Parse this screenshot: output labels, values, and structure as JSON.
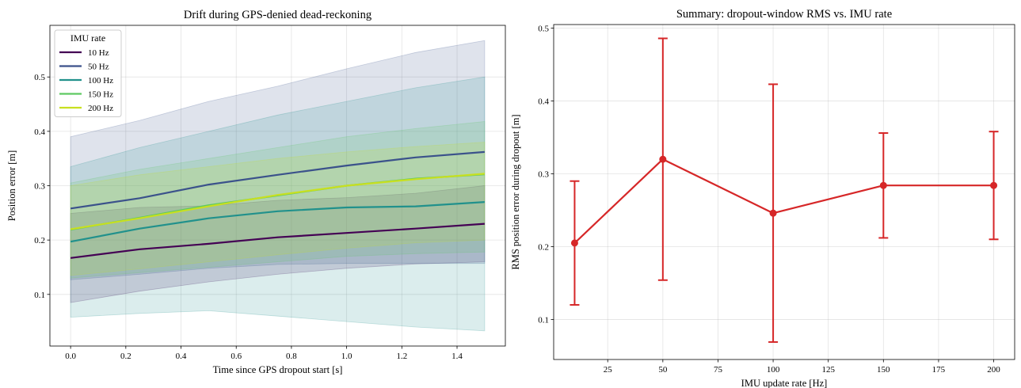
{
  "chart_data": [
    {
      "type": "line",
      "title": "Drift during GPS-denied dead-reckoning",
      "xlabel": "Time since GPS dropout start [s]",
      "ylabel": "Position error [m]",
      "xlim": [
        -0.075,
        1.575
      ],
      "ylim": [
        0.005,
        0.595
      ],
      "xticks": [
        0.0,
        0.2,
        0.4,
        0.6,
        0.8,
        1.0,
        1.2,
        1.4
      ],
      "xtick_labels": [
        "0.0",
        "0.2",
        "0.4",
        "0.6",
        "0.8",
        "1.0",
        "1.2",
        "1.4"
      ],
      "yticks": [
        0.1,
        0.2,
        0.3,
        0.4,
        0.5
      ],
      "ytick_labels": [
        "0.1",
        "0.2",
        "0.3",
        "0.4",
        "0.5"
      ],
      "grid": true,
      "legend": {
        "title": "IMU rate",
        "placement": "upper-left"
      },
      "x": [
        0.0,
        0.25,
        0.5,
        0.75,
        1.0,
        1.25,
        1.5
      ],
      "series": [
        {
          "name": "10 Hz",
          "color": "#440154",
          "values": [
            0.167,
            0.183,
            0.193,
            0.205,
            0.213,
            0.221,
            0.23
          ],
          "lower": [
            0.085,
            0.106,
            0.123,
            0.137,
            0.148,
            0.156,
            0.16
          ],
          "upper": [
            0.249,
            0.26,
            0.263,
            0.273,
            0.278,
            0.286,
            0.3
          ]
        },
        {
          "name": "50 Hz",
          "color": "#3b528b",
          "values": [
            0.258,
            0.277,
            0.302,
            0.32,
            0.337,
            0.352,
            0.362
          ],
          "lower": [
            0.127,
            0.137,
            0.148,
            0.155,
            0.157,
            0.157,
            0.157
          ],
          "upper": [
            0.39,
            0.42,
            0.455,
            0.483,
            0.515,
            0.545,
            0.567
          ]
        },
        {
          "name": "100 Hz",
          "color": "#21918c",
          "values": [
            0.197,
            0.221,
            0.24,
            0.253,
            0.26,
            0.262,
            0.27
          ],
          "lower": [
            0.058,
            0.065,
            0.07,
            0.06,
            0.05,
            0.04,
            0.033
          ],
          "upper": [
            0.335,
            0.37,
            0.4,
            0.43,
            0.455,
            0.48,
            0.5
          ]
        },
        {
          "name": "150 Hz",
          "color": "#5ec962",
          "values": [
            0.219,
            0.241,
            0.264,
            0.282,
            0.3,
            0.313,
            0.321
          ],
          "lower": [
            0.13,
            0.14,
            0.15,
            0.16,
            0.17,
            0.175,
            0.178
          ],
          "upper": [
            0.305,
            0.33,
            0.35,
            0.37,
            0.39,
            0.405,
            0.418
          ]
        },
        {
          "name": "200 Hz",
          "color": "#c8e020",
          "values": [
            0.22,
            0.24,
            0.262,
            0.283,
            0.3,
            0.312,
            0.322
          ],
          "lower": [
            0.135,
            0.147,
            0.16,
            0.173,
            0.185,
            0.195,
            0.2
          ],
          "upper": [
            0.3,
            0.32,
            0.335,
            0.35,
            0.362,
            0.372,
            0.38
          ]
        }
      ]
    },
    {
      "type": "line",
      "title": "Summary: dropout-window RMS vs. IMU rate",
      "xlabel": "IMU update rate [Hz]",
      "ylabel": "RMS position error during dropout [m]",
      "xlim": [
        0.5,
        209.5
      ],
      "ylim": [
        0.045,
        0.505
      ],
      "xticks": [
        25,
        50,
        75,
        100,
        125,
        150,
        175,
        200
      ],
      "xtick_labels": [
        "25",
        "50",
        "75",
        "100",
        "125",
        "150",
        "175",
        "200"
      ],
      "yticks": [
        0.1,
        0.2,
        0.3,
        0.4,
        0.5
      ],
      "ytick_labels": [
        "0.1",
        "0.2",
        "0.3",
        "0.4",
        "0.5"
      ],
      "grid": true,
      "color": "#d62728",
      "x": [
        10,
        50,
        100,
        150,
        200
      ],
      "values": [
        0.205,
        0.32,
        0.246,
        0.284,
        0.284
      ],
      "error": [
        0.085,
        0.166,
        0.177,
        0.072,
        0.074
      ]
    }
  ]
}
